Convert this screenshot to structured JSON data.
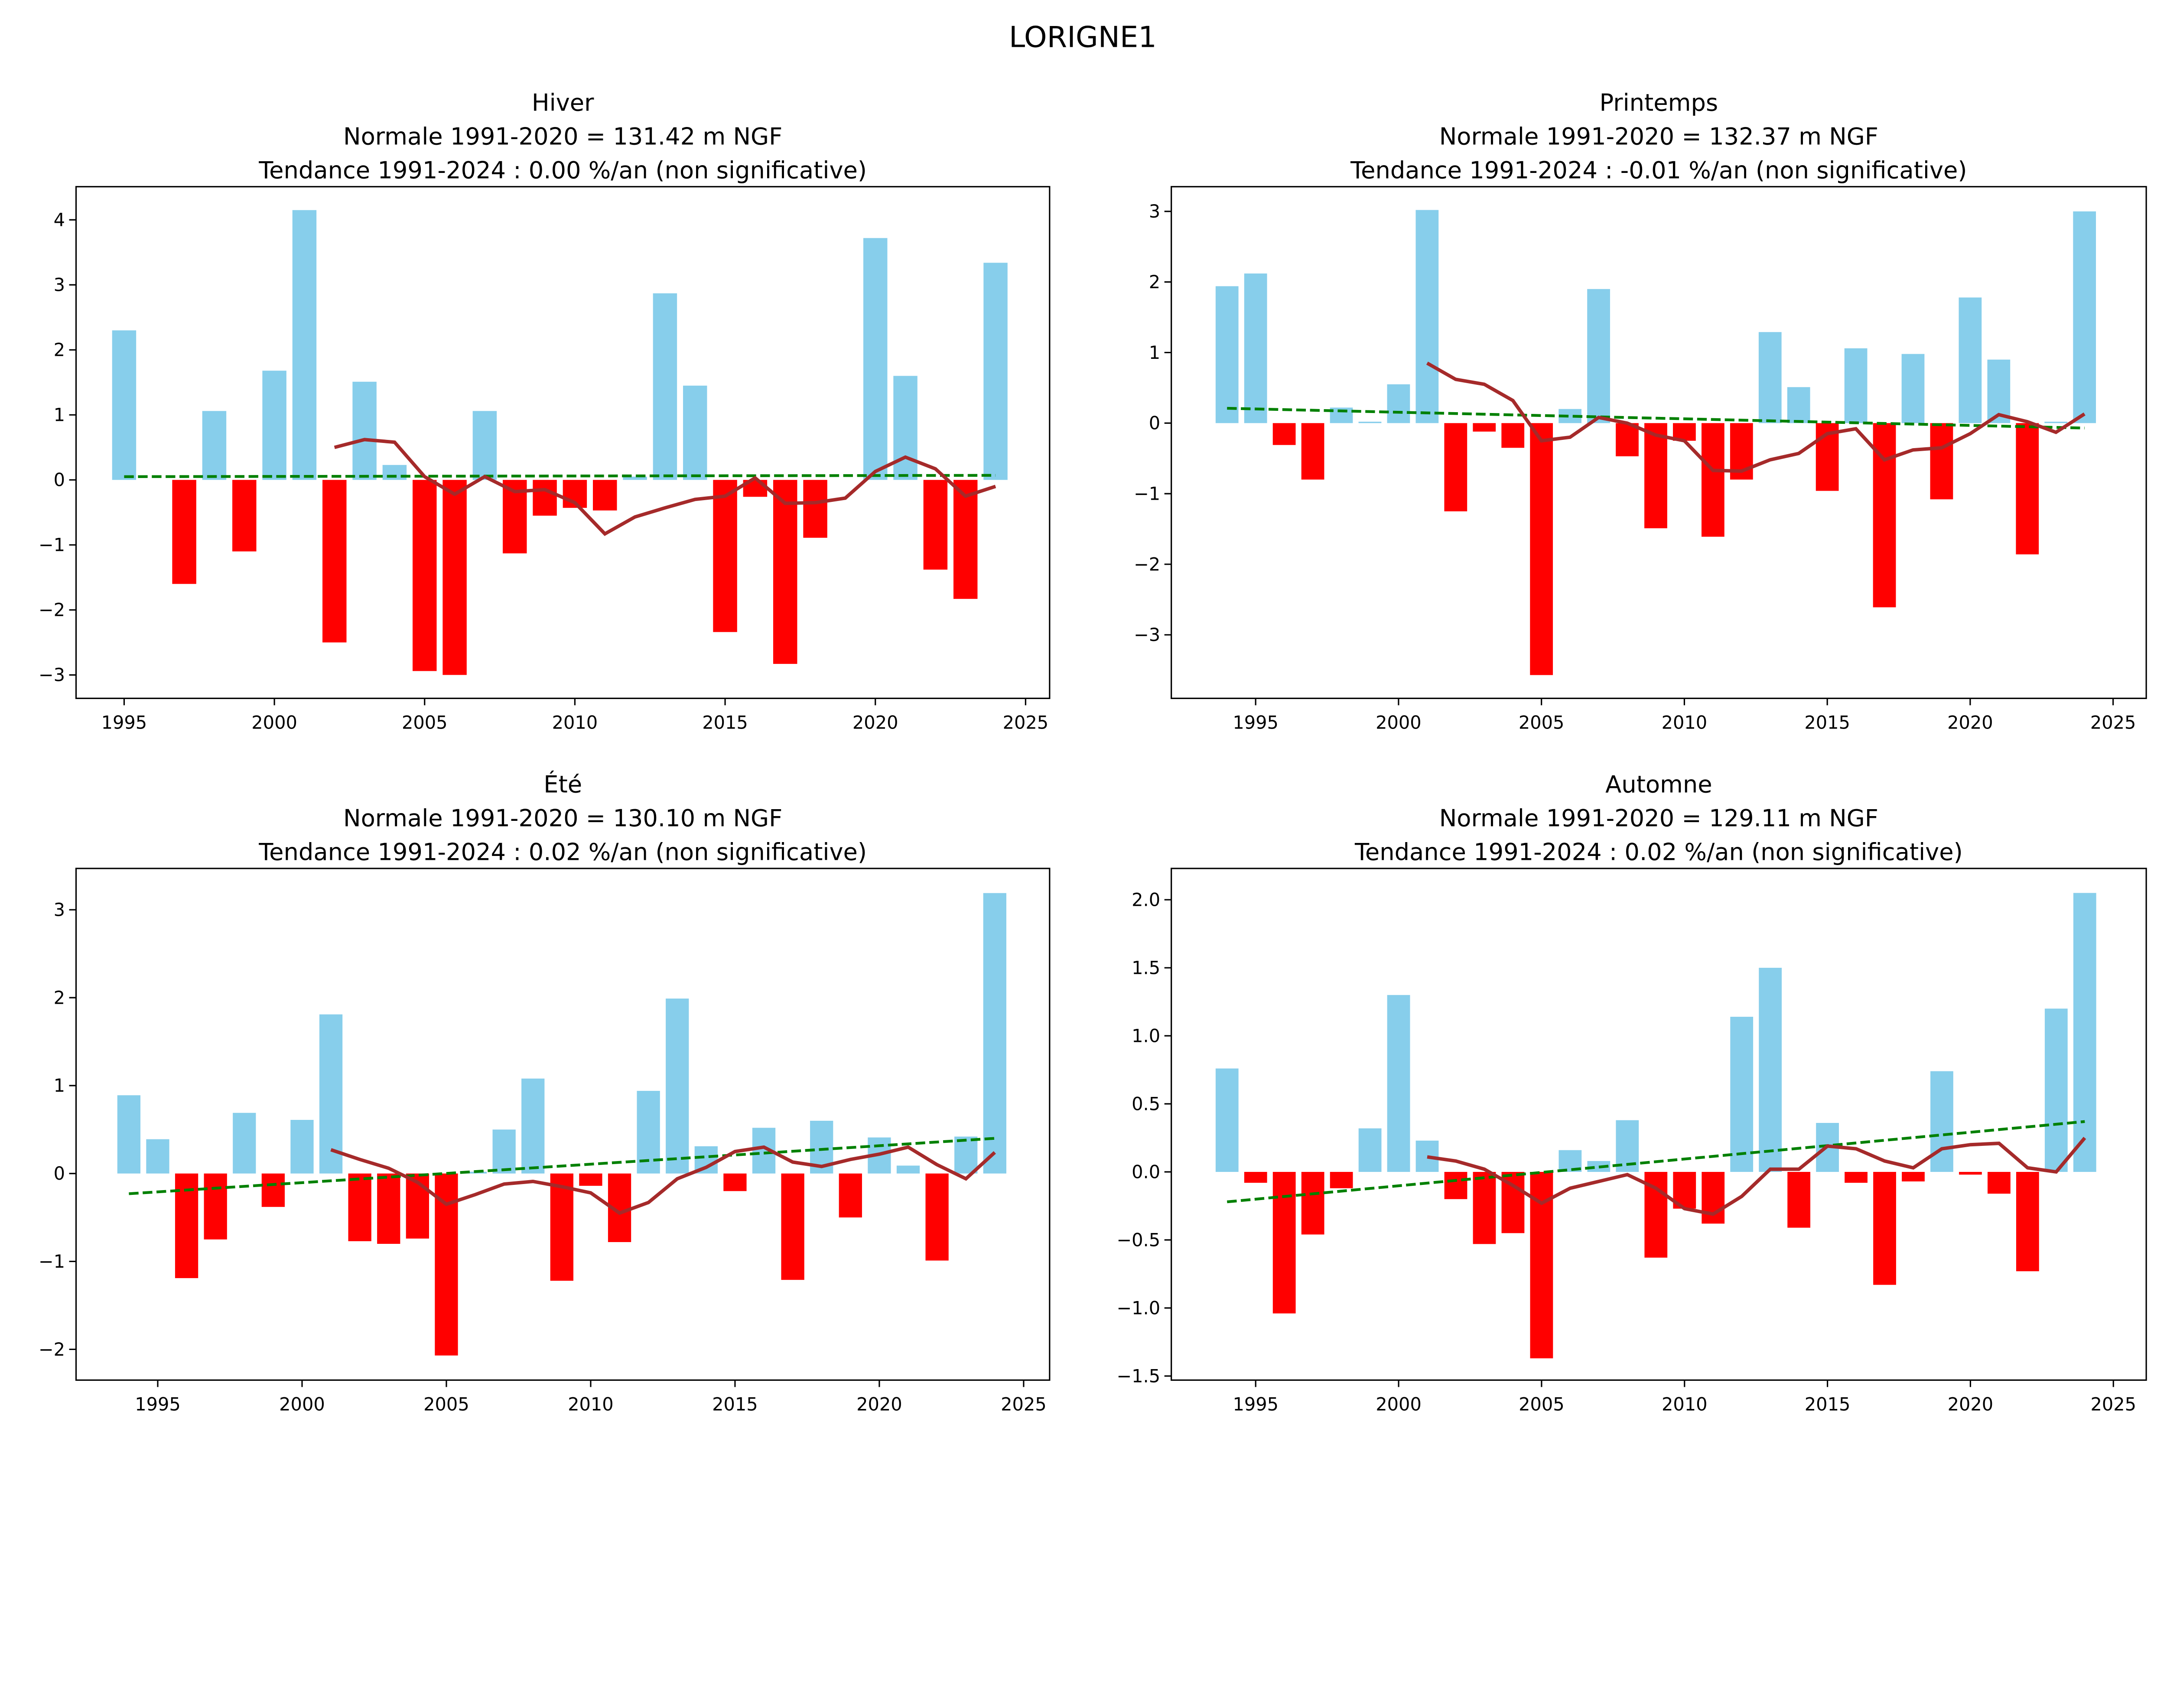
{
  "figure_title": "LORIGNE1",
  "colors": {
    "positive": "#87ceeb",
    "negative": "#ff0000",
    "moving_average": "#a52a2a",
    "trend": "#008000"
  },
  "chart_data": [
    {
      "type": "bar",
      "title": [
        "Hiver",
        "Normale 1991-2020 = 131.42 m NGF",
        "Tendance 1991-2024 : 0.00 %/an (non significative)"
      ],
      "xlim": [
        1993.4,
        2025.8
      ],
      "ylim": [
        -3.36,
        4.51
      ],
      "xticks": [
        1995,
        2000,
        2005,
        2010,
        2015,
        2020,
        2025
      ],
      "yticks": [
        -3,
        -2,
        -1,
        0,
        1,
        2,
        3,
        4
      ],
      "ytick_labels": [
        "−3",
        "−2",
        "−1",
        "0",
        "1",
        "2",
        "3",
        "4"
      ],
      "years": [
        1995,
        1996,
        1997,
        1998,
        1999,
        2000,
        2001,
        2002,
        2003,
        2004,
        2005,
        2006,
        2007,
        2008,
        2009,
        2010,
        2011,
        2012,
        2013,
        2014,
        2015,
        2016,
        2017,
        2018,
        2019,
        2020,
        2021,
        2022,
        2023,
        2024
      ],
      "values": [
        2.3,
        0.0,
        -1.6,
        1.06,
        -1.1,
        1.68,
        4.15,
        -2.5,
        1.51,
        0.23,
        -2.94,
        -3.0,
        1.06,
        -1.13,
        -0.55,
        -0.43,
        -0.47,
        0.05,
        2.87,
        1.45,
        -2.34,
        -0.26,
        -2.83,
        -0.89,
        0.0,
        3.72,
        1.6,
        -1.38,
        -1.83,
        3.34
      ],
      "moving_average": {
        "start_year": 2002,
        "values": [
          0.5,
          0.62,
          0.58,
          0.05,
          -0.22,
          0.05,
          -0.18,
          -0.15,
          -0.35,
          -0.83,
          -0.57,
          -0.43,
          -0.3,
          -0.25,
          0.03,
          -0.36,
          -0.35,
          -0.28,
          0.13,
          0.35,
          0.17,
          -0.25,
          -0.1
        ]
      },
      "trend": {
        "x": [
          1995,
          2024
        ],
        "y": [
          0.05,
          0.07
        ]
      }
    },
    {
      "type": "bar",
      "title": [
        "Printemps",
        "Normale 1991-2020 = 132.37 m NGF",
        "Tendance 1991-2024 : -0.01 %/an (non significative)"
      ],
      "xlim": [
        1992.05,
        2026.16
      ],
      "ylim": [
        -3.9,
        3.35
      ],
      "xticks": [
        1995,
        2000,
        2005,
        2010,
        2015,
        2020,
        2025
      ],
      "yticks": [
        -3,
        -2,
        -1,
        0,
        1,
        2,
        3
      ],
      "ytick_labels": [
        "−3",
        "−2",
        "−1",
        "0",
        "1",
        "2",
        "3"
      ],
      "years": [
        1994,
        1995,
        1996,
        1997,
        1998,
        1999,
        2000,
        2001,
        2002,
        2003,
        2004,
        2005,
        2006,
        2007,
        2008,
        2009,
        2010,
        2011,
        2012,
        2013,
        2014,
        2015,
        2016,
        2017,
        2018,
        2019,
        2020,
        2021,
        2022,
        2023,
        2024
      ],
      "values": [
        1.94,
        2.12,
        -0.31,
        -0.8,
        0.22,
        0.02,
        0.55,
        3.02,
        -1.25,
        -0.12,
        -0.35,
        -3.57,
        0.2,
        1.9,
        -0.47,
        -1.49,
        -0.25,
        -1.61,
        -0.8,
        1.29,
        0.51,
        -0.96,
        1.06,
        -2.61,
        0.98,
        -1.08,
        1.78,
        0.9,
        -1.86,
        0.02,
        3.0
      ],
      "moving_average": {
        "start_year": 2001,
        "values": [
          0.85,
          0.62,
          0.55,
          0.32,
          -0.25,
          -0.2,
          0.08,
          0.0,
          -0.17,
          -0.25,
          -0.67,
          -0.68,
          -0.52,
          -0.43,
          -0.15,
          -0.08,
          -0.52,
          -0.38,
          -0.35,
          -0.15,
          0.12,
          0.02,
          -0.13,
          0.13
        ]
      },
      "trend": {
        "x": [
          1994,
          2024
        ],
        "y": [
          0.21,
          -0.07
        ]
      }
    },
    {
      "type": "bar",
      "title": [
        "Été",
        "Normale 1991-2020 = 130.10 m NGF",
        "Tendance 1991-2024 : 0.02 %/an (non significative)"
      ],
      "xlim": [
        1992.17,
        2025.9
      ],
      "ylim": [
        -2.35,
        3.47
      ],
      "xticks": [
        1995,
        2000,
        2005,
        2010,
        2015,
        2020,
        2025
      ],
      "yticks": [
        -2,
        -1,
        0,
        1,
        2,
        3
      ],
      "ytick_labels": [
        "−2",
        "−1",
        "0",
        "1",
        "2",
        "3"
      ],
      "years": [
        1994,
        1995,
        1996,
        1997,
        1998,
        1999,
        2000,
        2001,
        2002,
        2003,
        2004,
        2005,
        2006,
        2007,
        2008,
        2009,
        2010,
        2011,
        2012,
        2013,
        2014,
        2015,
        2016,
        2017,
        2018,
        2019,
        2020,
        2021,
        2022,
        2023,
        2024
      ],
      "values": [
        0.89,
        0.39,
        -1.19,
        -0.75,
        0.69,
        -0.38,
        0.61,
        1.81,
        -0.77,
        -0.8,
        -0.74,
        -2.07,
        0.02,
        0.5,
        1.08,
        -1.22,
        -0.14,
        -0.78,
        0.94,
        1.99,
        0.31,
        -0.2,
        0.52,
        -1.21,
        0.6,
        -0.5,
        0.41,
        0.09,
        -0.99,
        0.42,
        3.19
      ],
      "moving_average": {
        "start_year": 2001,
        "values": [
          0.27,
          0.16,
          0.06,
          -0.1,
          -0.35,
          -0.24,
          -0.12,
          -0.09,
          -0.15,
          -0.22,
          -0.45,
          -0.33,
          -0.06,
          0.07,
          0.25,
          0.3,
          0.13,
          0.08,
          0.16,
          0.22,
          0.3,
          0.1,
          -0.06,
          0.24
        ]
      },
      "trend": {
        "x": [
          1994,
          2024
        ],
        "y": [
          -0.23,
          0.4
        ]
      }
    },
    {
      "type": "bar",
      "title": [
        "Automne",
        "Normale 1991-2020 = 129.11 m NGF",
        "Tendance 1991-2024 : 0.02 %/an (non significative)"
      ],
      "xlim": [
        1992.05,
        2026.15
      ],
      "ylim": [
        -1.53,
        2.23
      ],
      "xticks": [
        1995,
        2000,
        2005,
        2010,
        2015,
        2020,
        2025
      ],
      "yticks": [
        -1.5,
        -1.0,
        -0.5,
        0,
        0.5,
        1.0,
        1.5,
        2.0
      ],
      "ytick_labels": [
        "−1.5",
        "−1.0",
        "−0.5",
        "0.0",
        "0.5",
        "1.0",
        "1.5",
        "2.0"
      ],
      "years": [
        1994,
        1995,
        1996,
        1997,
        1998,
        1999,
        2000,
        2001,
        2002,
        2003,
        2004,
        2005,
        2006,
        2007,
        2008,
        2009,
        2010,
        2011,
        2012,
        2013,
        2014,
        2015,
        2016,
        2017,
        2018,
        2019,
        2020,
        2021,
        2022,
        2023,
        2024
      ],
      "values": [
        0.76,
        -0.08,
        -1.04,
        -0.46,
        -0.12,
        0.32,
        1.3,
        0.23,
        -0.2,
        -0.53,
        -0.45,
        -1.37,
        0.16,
        0.08,
        0.38,
        -0.63,
        -0.27,
        -0.38,
        1.14,
        1.5,
        -0.41,
        0.36,
        -0.08,
        -0.83,
        -0.07,
        0.74,
        -0.02,
        -0.16,
        -0.73,
        1.2,
        2.05
      ],
      "moving_average": {
        "start_year": 2001,
        "values": [
          0.11,
          0.08,
          0.02,
          -0.1,
          -0.23,
          -0.12,
          -0.07,
          -0.02,
          -0.12,
          -0.27,
          -0.31,
          -0.18,
          0.02,
          0.02,
          0.19,
          0.17,
          0.08,
          0.03,
          0.17,
          0.2,
          0.21,
          0.03,
          0.0,
          0.25
        ]
      },
      "trend": {
        "x": [
          1994,
          2024
        ],
        "y": [
          -0.22,
          0.37
        ]
      }
    }
  ]
}
